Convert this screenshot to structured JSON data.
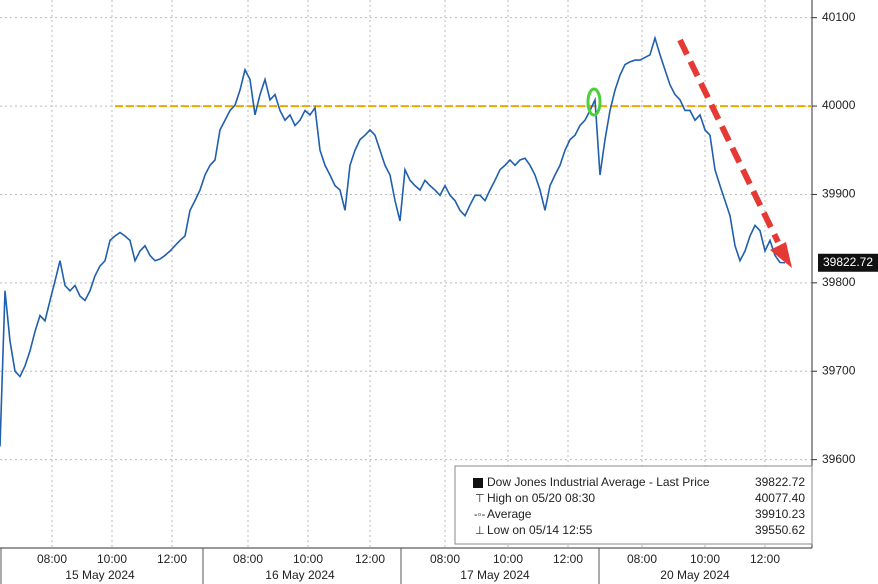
{
  "chart_data": {
    "type": "line",
    "x": [
      0,
      10,
      20,
      30,
      40,
      50,
      60,
      70,
      80,
      90,
      100,
      110,
      120,
      130,
      140,
      150,
      160,
      170,
      180,
      190,
      200,
      210,
      220,
      230,
      240,
      250,
      260,
      270,
      280,
      290,
      300,
      310,
      320,
      330,
      340,
      350,
      360,
      370,
      380,
      390,
      400,
      410,
      420,
      430,
      440,
      450,
      460,
      470,
      480,
      490,
      500,
      510,
      520,
      530,
      540,
      550,
      560,
      570,
      580,
      590,
      600,
      610,
      620,
      630,
      640,
      650,
      660,
      670,
      680,
      690,
      700,
      710,
      720,
      730,
      740,
      750,
      760,
      770,
      780,
      790,
      800,
      810,
      820,
      830,
      840,
      850,
      860,
      870,
      880,
      890,
      900,
      910,
      920,
      930,
      940,
      950,
      960,
      970,
      980,
      990,
      1000,
      1010,
      1020,
      1030,
      1040,
      1050,
      1060,
      1070,
      1080,
      1090,
      1100,
      1110,
      1120,
      1130,
      1140,
      1150,
      1160,
      1170,
      1180,
      1190,
      1200,
      1210,
      1220,
      1230,
      1240,
      1250,
      1260,
      1270,
      1280,
      1290,
      1300,
      1310,
      1320,
      1330,
      1340,
      1350,
      1360,
      1370,
      1380,
      1390,
      1400,
      1410,
      1420,
      1430,
      1440,
      1450,
      1460,
      1470,
      1480,
      1490,
      1500,
      1510,
      1520,
      1530,
      1540,
      1550,
      1560,
      1570
    ],
    "series": [
      {
        "name": "Dow Jones Industrial Average - Last Price",
        "color": "#1f5fae",
        "values": [
          39615,
          39791,
          39734,
          39700,
          39694,
          39706,
          39723,
          39745,
          39763,
          39757,
          39780,
          39802,
          39825,
          39797,
          39791,
          39797,
          39785,
          39780,
          39791,
          39808,
          39819,
          39825,
          39848,
          39853,
          39857,
          39853,
          39848,
          39825,
          39836,
          39842,
          39831,
          39825,
          39827,
          39831,
          39836,
          39842,
          39848,
          39853,
          39882,
          39893,
          39905,
          39922,
          39933,
          39939,
          39973,
          39984,
          39995,
          40001,
          40018,
          40041,
          40030,
          39990,
          40013,
          40030,
          40007,
          40013,
          39995,
          39984,
          39990,
          39978,
          39984,
          39995,
          39990,
          39998,
          39950,
          39933,
          39922,
          39910,
          39905,
          39882,
          39933,
          39950,
          39962,
          39967,
          39973,
          39967,
          39950,
          39933,
          39922,
          39893,
          39870,
          39928,
          39916,
          39910,
          39905,
          39916,
          39910,
          39905,
          39899,
          39910,
          39899,
          39893,
          39882,
          39876,
          39888,
          39899,
          39899,
          39893,
          39905,
          39916,
          39928,
          39933,
          39939,
          39933,
          39939,
          39941,
          39933,
          39922,
          39905,
          39882,
          39910,
          39922,
          39933,
          39950,
          39962,
          39967,
          39978,
          39984,
          39995,
          40007,
          39922,
          39962,
          39995,
          40018,
          40035,
          40047,
          40050,
          40052,
          40052,
          40055,
          40058,
          40077,
          40058,
          40041,
          40024,
          40013,
          40007,
          39995,
          39995,
          39984,
          39990,
          39973,
          39967,
          39928,
          39910,
          39893,
          39876,
          39842,
          39825,
          39836,
          39853,
          39865,
          39859,
          39836,
          39848,
          39831,
          39823,
          39822.72
        ]
      }
    ],
    "xlim": [
      0,
      1624
    ],
    "xticks": [
      {
        "value": 104,
        "label": "08:00"
      },
      {
        "value": 224,
        "label": "10:00"
      },
      {
        "value": 344,
        "label": "12:00"
      },
      {
        "value": 496,
        "label": "08:00"
      },
      {
        "value": 616,
        "label": "10:00"
      },
      {
        "value": 740,
        "label": "12:00"
      },
      {
        "value": 890,
        "label": "08:00"
      },
      {
        "value": 1016,
        "label": "10:00"
      },
      {
        "value": 1136,
        "label": "12:00"
      },
      {
        "value": 1284,
        "label": "08:00"
      },
      {
        "value": 1410,
        "label": "10:00"
      },
      {
        "value": 1530,
        "label": "12:00"
      }
    ],
    "days": [
      {
        "value": 200,
        "label": "15 May 2024"
      },
      {
        "value": 600,
        "label": "16 May 2024"
      },
      {
        "value": 990,
        "label": "17 May 2024"
      },
      {
        "value": 1390,
        "label": "20 May 2024"
      }
    ],
    "day_starts": [
      0,
      404,
      800,
      1196
    ],
    "ylim": [
      39500,
      40120
    ],
    "yticks": [
      39600,
      39700,
      39800,
      39900,
      40000,
      40100
    ],
    "reference_line": 40000,
    "grid": true,
    "legend": [
      {
        "name": "Dow Jones Industrial Average - Last Price",
        "value": 39822.72,
        "label": "39822.72"
      },
      {
        "name": "High on 05/20 08:30",
        "value": 40077.4,
        "label": "40077.40"
      },
      {
        "name": "Average",
        "value": 39910.23,
        "label": "39910.23"
      },
      {
        "name": "Low on 05/14 12:55",
        "value": 39550.62,
        "label": "39550.62"
      }
    ]
  }
}
